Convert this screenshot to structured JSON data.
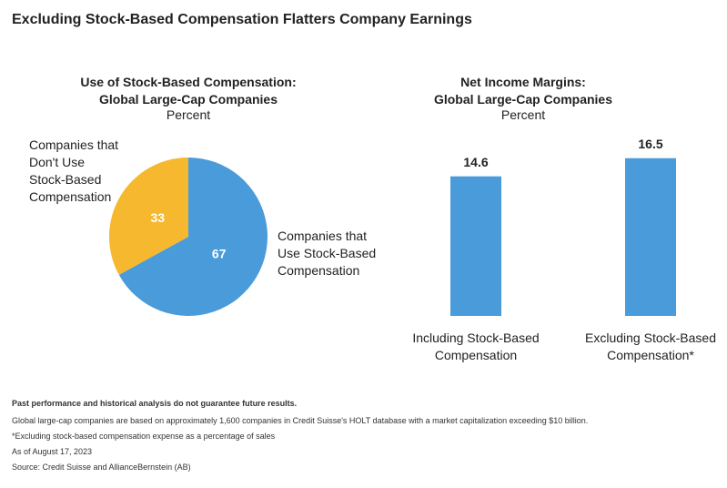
{
  "title": "Excluding Stock-Based Compensation Flatters Company Earnings",
  "chart_data": [
    {
      "type": "pie",
      "title": "Use of Stock-Based Compensation:\nGlobal Large-Cap Companies",
      "subtitle": "Percent",
      "categories": [
        "Companies that\nUse Stock-Based\nCompensation",
        "Companies that\nDon't Use\nStock-Based\nCompensation"
      ],
      "values": [
        67,
        33
      ],
      "colors": [
        "#4a9bd9",
        "#f5b82e"
      ]
    },
    {
      "type": "bar",
      "title": "Net Income Margins:\nGlobal Large-Cap Companies",
      "subtitle": "Percent",
      "categories": [
        "Including Stock-Based\nCompensation",
        "Excluding Stock-Based\nCompensation*"
      ],
      "values": [
        14.6,
        16.5
      ],
      "color": "#4a9bd9",
      "ylim": [
        0,
        18
      ]
    }
  ],
  "footer": {
    "disclaimer": "Past performance and historical analysis do not guarantee future results.",
    "notes": [
      "Global large-cap companies are based on approximately 1,600 companies in Credit Suisse's HOLT database with a market capitalization exceeding $10 billion.",
      "*Excluding stock-based compensation expense as a percentage of sales",
      "As of August 17, 2023",
      "Source: Credit Suisse and AllianceBernstein (AB)"
    ]
  }
}
